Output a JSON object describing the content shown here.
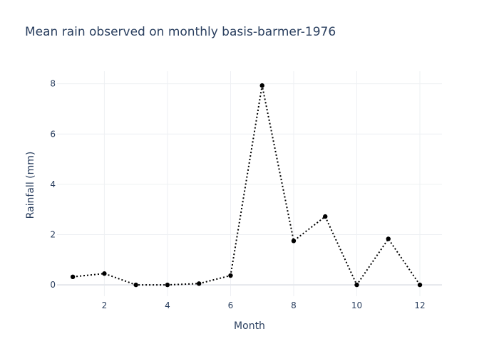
{
  "chart_data": {
    "type": "line",
    "title": "Mean rain observed on monthly basis-barmer-1976",
    "xlabel": "Month",
    "ylabel": "Rainfall (mm)",
    "x": [
      1,
      2,
      3,
      4,
      5,
      6,
      7,
      8,
      9,
      10,
      11,
      12
    ],
    "series": [
      {
        "values": [
          0.32,
          0.45,
          0.0,
          0.0,
          0.05,
          0.37,
          7.93,
          1.75,
          2.72,
          0.0,
          1.83,
          0.0
        ]
      }
    ],
    "xlim": [
      0.5,
      12.7
    ],
    "ylim": [
      -0.45,
      8.5
    ],
    "xticks": [
      2,
      4,
      6,
      8,
      10,
      12
    ],
    "yticks": [
      0,
      2,
      4,
      6,
      8
    ],
    "grid": true,
    "legend": "none",
    "line_style": "dotted",
    "line_color": "#000000",
    "marker_color": "#000000"
  }
}
